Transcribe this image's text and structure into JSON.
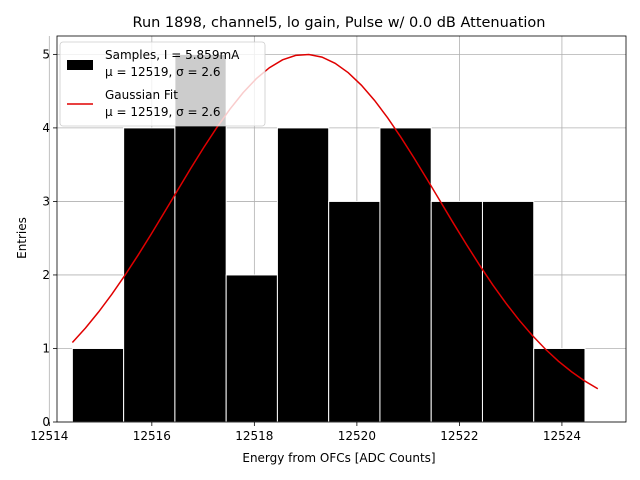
{
  "chart_data": {
    "type": "bar",
    "title": "Run 1898, channel5, lo gain, Pulse w/ 0.0 dB Attenuation",
    "xlabel": "Energy from OFCs [ADC Counts]",
    "ylabel": "Entries",
    "xlim": [
      12514.15,
      12525.25
    ],
    "ylim": [
      0,
      5.25
    ],
    "grid": true,
    "legend_position": "top-left",
    "bin_width": 1,
    "histogram": {
      "name": "Samples, I = 5.859mA",
      "stats": "μ = 12519, σ = 2.6",
      "color": "#000000",
      "bins": [
        {
          "x0": 12514.45,
          "x1": 12515.45,
          "count": 1
        },
        {
          "x0": 12515.45,
          "x1": 12516.45,
          "count": 4
        },
        {
          "x0": 12516.45,
          "x1": 12517.45,
          "count": 5
        },
        {
          "x0": 12517.45,
          "x1": 12518.45,
          "count": 2
        },
        {
          "x0": 12518.45,
          "x1": 12519.45,
          "count": 4
        },
        {
          "x0": 12519.45,
          "x1": 12520.45,
          "count": 3
        },
        {
          "x0": 12520.45,
          "x1": 12521.45,
          "count": 4
        },
        {
          "x0": 12521.45,
          "x1": 12522.45,
          "count": 3
        },
        {
          "x0": 12522.45,
          "x1": 12523.45,
          "count": 3
        },
        {
          "x0": 12523.45,
          "x1": 12524.45,
          "count": 1
        }
      ]
    },
    "fit": {
      "name": "Gaussian Fit",
      "stats": "μ = 12519, σ = 2.6",
      "color": "#e00000",
      "amplitude": 5.0,
      "mean": 12519.0,
      "sigma": 2.6,
      "x_range": [
        12514.45,
        12524.7
      ]
    },
    "x_ticks": [
      12514,
      12516,
      12518,
      12520,
      12522,
      12524
    ],
    "x_tick_labels": [
      "12514",
      "12516",
      "12518",
      "12520",
      "12522",
      "12524"
    ],
    "y_ticks": [
      0,
      1,
      2,
      3,
      4,
      5
    ],
    "y_tick_labels": [
      "0",
      "1",
      "2",
      "3",
      "4",
      "5"
    ]
  }
}
